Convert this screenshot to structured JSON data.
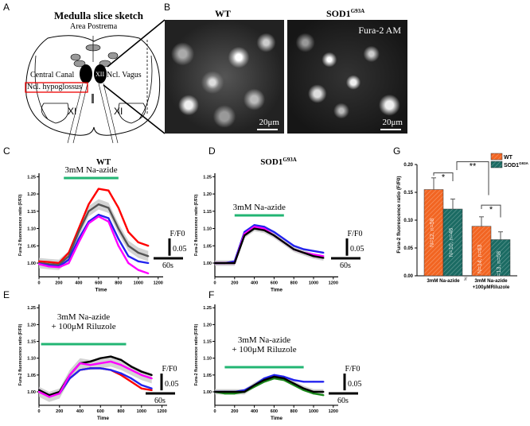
{
  "panel_labels": [
    "A",
    "B",
    "C",
    "D",
    "E",
    "F",
    "G"
  ],
  "panel_a": {
    "title": "Medulla slice sketch",
    "area_postrema": "Area Postrema",
    "central_canal": "Central Canal",
    "ncl_vagus": "Ncl. Vagus",
    "xii": "XII",
    "ncl_hypoglossus": "Ncl. hypoglossus",
    "xi_left": "XI",
    "xi_right": "XI"
  },
  "panel_b": {
    "wt_title": "WT",
    "sod_title": "SOD1",
    "sod_sup": "G93A",
    "dye": "Fura-2 AM",
    "scale_wt": "20μm",
    "scale_sod": "20μm"
  },
  "colors": {
    "green_bar": "#22b573",
    "wt_bar": "#f26522",
    "sod_bar": "#1b6b63",
    "red": "#ff0000",
    "blue": "#2222ee",
    "magenta": "#ff00ff",
    "gray": "#777777",
    "black": "#000000",
    "green": "#1a8a1a"
  },
  "chart_data": [
    {
      "id": "C",
      "type": "line",
      "title": "WT",
      "xlabel": "Time",
      "ylabel": "Fura-2 fluorescence ratio (F/F0)",
      "xlim": [
        0,
        1250
      ],
      "ylim": [
        0.96,
        1.26
      ],
      "xticks": [
        "0",
        "200",
        "400",
        "600",
        "800",
        "1000",
        "1200"
      ],
      "yticks": [
        "1.00",
        "1.05",
        "1.10",
        "1.15",
        "1.20",
        "1.25"
      ],
      "stimulus": {
        "label": "3mM Na-azide",
        "start": 250,
        "end": 800
      },
      "scale_bar": {
        "y_label": "F/F0",
        "y_value": "0.05",
        "x_value": "60s"
      },
      "x": [
        0,
        100,
        200,
        300,
        400,
        500,
        600,
        700,
        800,
        900,
        1000,
        1100
      ],
      "band": {
        "center": "gray",
        "halfwidth": 0.015
      },
      "series": [
        {
          "name": "red",
          "color": "#ff0000",
          "values": [
            1.005,
            1.003,
            1.0,
            1.03,
            1.1,
            1.17,
            1.215,
            1.21,
            1.16,
            1.09,
            1.06,
            1.05
          ]
        },
        {
          "name": "gray",
          "color": "#555555",
          "values": [
            1.0,
            0.997,
            0.995,
            1.02,
            1.09,
            1.15,
            1.17,
            1.16,
            1.1,
            1.05,
            1.03,
            1.02
          ]
        },
        {
          "name": "blue",
          "color": "#2222ee",
          "values": [
            0.998,
            0.993,
            0.99,
            1.01,
            1.07,
            1.12,
            1.14,
            1.13,
            1.07,
            1.02,
            1.005,
            1.0
          ]
        },
        {
          "name": "magenta",
          "color": "#ff00ff",
          "values": [
            0.997,
            0.99,
            0.988,
            1.0,
            1.06,
            1.115,
            1.135,
            1.12,
            1.05,
            1.0,
            0.98,
            0.97
          ]
        }
      ]
    },
    {
      "id": "D",
      "type": "line",
      "title": "SOD1",
      "title_sup": "G93A",
      "xlabel": "Time",
      "ylabel": "Fura-2 fluorescence ratio (F/F0)",
      "xlim": [
        0,
        1250
      ],
      "ylim": [
        0.96,
        1.26
      ],
      "xticks": [
        "0",
        "200",
        "400",
        "600",
        "800",
        "1000",
        "1200"
      ],
      "yticks": [
        "1.00",
        "1.05",
        "1.10",
        "1.15",
        "1.20",
        "1.25"
      ],
      "stimulus": {
        "label": "3mM Na-azide",
        "start": 200,
        "end": 700
      },
      "scale_bar": {
        "y_label": "F/F0",
        "y_value": "0.05",
        "x_value": "60s"
      },
      "x": [
        0,
        100,
        200,
        300,
        400,
        500,
        600,
        700,
        800,
        900,
        1000,
        1100
      ],
      "band": {
        "center": "black",
        "halfwidth": 0.008
      },
      "series": [
        {
          "name": "blue",
          "color": "#2222ee",
          "values": [
            1.0,
            1.0,
            1.005,
            1.09,
            1.11,
            1.105,
            1.09,
            1.07,
            1.05,
            1.04,
            1.035,
            1.03
          ]
        },
        {
          "name": "magenta",
          "color": "#ff00ff",
          "values": [
            1.0,
            1.0,
            1.0,
            1.085,
            1.105,
            1.1,
            1.08,
            1.06,
            1.04,
            1.03,
            1.025,
            1.02
          ]
        },
        {
          "name": "black",
          "color": "#000000",
          "values": [
            1.0,
            1.0,
            1.0,
            1.08,
            1.1,
            1.095,
            1.08,
            1.06,
            1.04,
            1.03,
            1.02,
            1.015
          ]
        }
      ]
    },
    {
      "id": "E",
      "type": "line",
      "title": "",
      "xlabel": "Time",
      "ylabel": "Fura-2 fluorescence ratio (F/F0)",
      "xlim": [
        0,
        1250
      ],
      "ylim": [
        0.96,
        1.26
      ],
      "xticks": [
        "0",
        "200",
        "400",
        "600",
        "800",
        "1000",
        "1200"
      ],
      "yticks": [
        "1.00",
        "1.05",
        "1.10",
        "1.15",
        "1.20",
        "1.25"
      ],
      "stimulus": {
        "label": "3mM Na-azide",
        "label2": "+ 100μM Riluzole",
        "start": 20,
        "end": 850
      },
      "scale_bar": {
        "y_label": "F/F0",
        "y_value": "0.05",
        "x_value": "60s"
      },
      "x": [
        0,
        100,
        200,
        300,
        400,
        500,
        600,
        700,
        800,
        900,
        1000,
        1100
      ],
      "band": {
        "center": "magenta",
        "halfwidth": 0.015
      },
      "series": [
        {
          "name": "red",
          "color": "#ff0000",
          "values": [
            1.005,
            0.99,
            0.995,
            1.04,
            1.065,
            1.07,
            1.07,
            1.065,
            1.05,
            1.03,
            1.01,
            1.005
          ]
        },
        {
          "name": "blue",
          "color": "#2222ee",
          "values": [
            1.005,
            0.99,
            0.995,
            1.04,
            1.065,
            1.07,
            1.07,
            1.065,
            1.055,
            1.04,
            1.02,
            1.01
          ]
        },
        {
          "name": "black",
          "color": "#000000",
          "values": [
            1.005,
            0.99,
            1.0,
            1.05,
            1.085,
            1.09,
            1.1,
            1.105,
            1.095,
            1.075,
            1.06,
            1.05
          ]
        },
        {
          "name": "magenta",
          "color": "#ff00ff",
          "values": [
            1.0,
            0.985,
            0.995,
            1.05,
            1.085,
            1.08,
            1.085,
            1.09,
            1.08,
            1.065,
            1.05,
            1.04
          ]
        }
      ]
    },
    {
      "id": "F",
      "type": "line",
      "title": "",
      "xlabel": "Time",
      "ylabel": "Fura-2 fluorescence ratio (F/F0)",
      "xlim": [
        0,
        1250
      ],
      "ylim": [
        0.96,
        1.26
      ],
      "xticks": [
        "0",
        "200",
        "400",
        "600",
        "800",
        "1000",
        "1200"
      ],
      "yticks": [
        "1.00",
        "1.05",
        "1.10",
        "1.15",
        "1.20",
        "1.25"
      ],
      "stimulus": {
        "label": "3mM Na-azide",
        "label2": "+ 100μM Riluzole",
        "start": 100,
        "end": 900
      },
      "scale_bar": {
        "y_label": "F/F0",
        "y_value": "0.05",
        "x_value": "60s"
      },
      "x": [
        0,
        100,
        200,
        300,
        400,
        500,
        600,
        700,
        800,
        900,
        1000,
        1100
      ],
      "band": {
        "center": "black",
        "halfwidth": 0.008
      },
      "series": [
        {
          "name": "blue",
          "color": "#2222ee",
          "values": [
            1.0,
            1.0,
            1.0,
            1.005,
            1.02,
            1.04,
            1.05,
            1.045,
            1.035,
            1.03,
            1.03,
            1.03
          ]
        },
        {
          "name": "green",
          "color": "#1a8a1a",
          "values": [
            1.0,
            0.995,
            0.995,
            1.0,
            1.015,
            1.03,
            1.04,
            1.035,
            1.02,
            1.005,
            0.995,
            0.99
          ]
        },
        {
          "name": "black",
          "color": "#000000",
          "values": [
            1.0,
            1.0,
            1.0,
            1.0,
            1.02,
            1.035,
            1.045,
            1.04,
            1.025,
            1.01,
            1.0,
            1.0
          ]
        }
      ]
    },
    {
      "id": "G",
      "type": "bar",
      "ylabel": "Fura-2 fluorescence ratio (F/F0)",
      "ylim": [
        0,
        0.2
      ],
      "yticks": [
        "0.00",
        "0.05",
        "0.10",
        "0.15",
        "0.20"
      ],
      "categories": [
        "3mM Na-azide",
        "3mM Na-azide",
        "+100μMRiluzole"
      ],
      "axis_break": "//",
      "legend": [
        {
          "name": "WT",
          "sup": ""
        },
        {
          "name": "SOD1",
          "sup": "G93A"
        }
      ],
      "groups": [
        {
          "label": "3mM Na-azide",
          "bars": [
            {
              "series": "WT",
              "value": 0.155,
              "error": 0.021,
              "n_label": "N=12, n=58"
            },
            {
              "series": "SOD1G93A",
              "value": 0.12,
              "error": 0.018,
              "n_label": "N=10, n=46"
            }
          ]
        },
        {
          "label": "3mM Na-azide",
          "label2": "+100μMRiluzole",
          "bars": [
            {
              "series": "WT",
              "value": 0.089,
              "error": 0.017,
              "n_label": "N=14, n=63"
            },
            {
              "series": "SOD1G93A",
              "value": 0.065,
              "error": 0.014,
              "n_label": "N=13, n=58"
            }
          ]
        }
      ],
      "significance": [
        {
          "label": "*"
        },
        {
          "label": "**"
        },
        {
          "label": "*"
        }
      ]
    }
  ]
}
